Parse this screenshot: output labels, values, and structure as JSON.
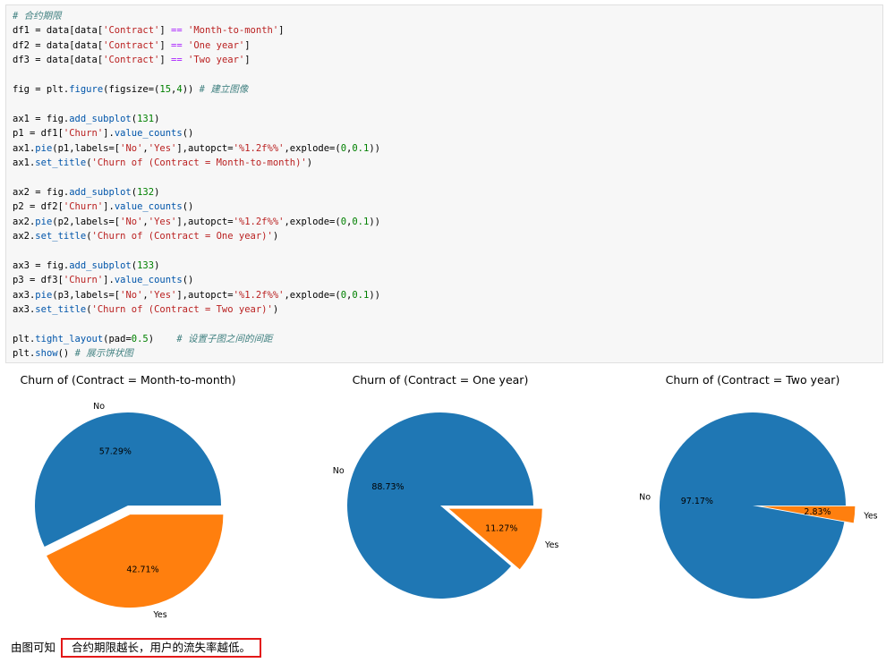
{
  "code_lines": [
    "# 合约期限",
    "df1 = data[data['Contract'] == 'Month-to-month']",
    "df2 = data[data['Contract'] == 'One year']",
    "df3 = data[data['Contract'] == 'Two year']",
    "",
    "fig = plt.figure(figsize=(15,4)) # 建立图像",
    "",
    "ax1 = fig.add_subplot(131)",
    "p1 = df1['Churn'].value_counts()",
    "ax1.pie(p1,labels=['No','Yes'],autopct='%1.2f%%',explode=(0,0.1))",
    "ax1.set_title('Churn of (Contract = Month-to-month)')",
    "",
    "ax2 = fig.add_subplot(132)",
    "p2 = df2['Churn'].value_counts()",
    "ax2.pie(p2,labels=['No','Yes'],autopct='%1.2f%%',explode=(0,0.1))",
    "ax2.set_title('Churn of (Contract = One year)')",
    "",
    "ax3 = fig.add_subplot(133)",
    "p3 = df3['Churn'].value_counts()",
    "ax3.pie(p3,labels=['No','Yes'],autopct='%1.2f%%',explode=(0,0.1))",
    "ax3.set_title('Churn of (Contract = Two year)')",
    "",
    "plt.tight_layout(pad=0.5)    # 设置子图之间的间距",
    "plt.show() # 展示饼状图"
  ],
  "chart_data": [
    {
      "type": "pie",
      "title": "Churn of (Contract = Month-to-month)",
      "labels": [
        "No",
        "Yes"
      ],
      "values": [
        57.29,
        42.71
      ],
      "value_labels": [
        "57.29%",
        "42.71%"
      ],
      "explode": [
        0,
        0.1
      ],
      "colors": [
        "#1f77b4",
        "#ff7f0e"
      ]
    },
    {
      "type": "pie",
      "title": "Churn of (Contract = One year)",
      "labels": [
        "No",
        "Yes"
      ],
      "values": [
        88.73,
        11.27
      ],
      "value_labels": [
        "88.73%",
        "11.27%"
      ],
      "explode": [
        0,
        0.1
      ],
      "colors": [
        "#1f77b4",
        "#ff7f0e"
      ]
    },
    {
      "type": "pie",
      "title": "Churn of (Contract = Two year)",
      "labels": [
        "No",
        "Yes"
      ],
      "values": [
        97.17,
        2.83
      ],
      "value_labels": [
        "97.17%",
        "2.83%"
      ],
      "explode": [
        0,
        0.1
      ],
      "colors": [
        "#1f77b4",
        "#ff7f0e"
      ]
    }
  ],
  "conclusion": {
    "prefix": "由图可知",
    "highlight": "合约期限越长，用户的流失率越低。"
  }
}
